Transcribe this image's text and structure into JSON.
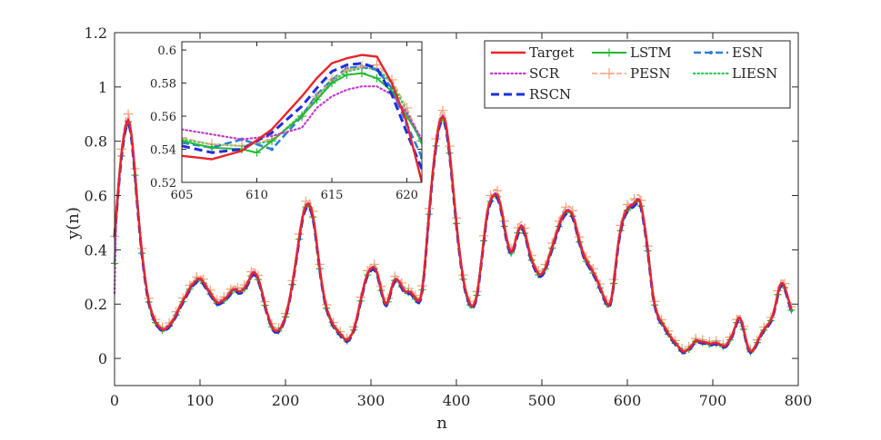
{
  "chart_data": {
    "type": "line",
    "title": "",
    "xlabel": "n",
    "ylabel": "y(n)",
    "xlim": [
      0,
      800
    ],
    "ylim": [
      -0.1,
      1.2
    ],
    "xticks": [
      "0",
      "100",
      "200",
      "300",
      "400",
      "500",
      "600",
      "700",
      "800"
    ],
    "yticks": [
      "0",
      "0.2",
      "0.4",
      "0.6",
      "0.8",
      "1",
      "1.2"
    ],
    "legend_position": "top-right",
    "target_curve": {
      "x": [
        0,
        4,
        8,
        13,
        17,
        21,
        26,
        32,
        40,
        48,
        57,
        67,
        78,
        90,
        100,
        110,
        120,
        130,
        140,
        147,
        155,
        163,
        170,
        178,
        186,
        193,
        200,
        207,
        214,
        221,
        228,
        234,
        241,
        248,
        256,
        264,
        272,
        280,
        287,
        294,
        301,
        307,
        312,
        318,
        323,
        328,
        334,
        340,
        346,
        352,
        358,
        362,
        367,
        373,
        380,
        386,
        391,
        397,
        403,
        410,
        418,
        424,
        430,
        436,
        442,
        448,
        453,
        459,
        465,
        470,
        476,
        481,
        486,
        491,
        497,
        503,
        509,
        516,
        523,
        530,
        537,
        543,
        550,
        558,
        566,
        573,
        580,
        585,
        590,
        596,
        602,
        609,
        614,
        619,
        625,
        630,
        636,
        643,
        650,
        658,
        666,
        674,
        680,
        686,
        692,
        697,
        703,
        709,
        715,
        720,
        725,
        731,
        737,
        741,
        746,
        752,
        758,
        764,
        770,
        775,
        779,
        784,
        788,
        793
      ],
      "y": [
        0.45,
        0.62,
        0.76,
        0.87,
        0.9,
        0.8,
        0.6,
        0.38,
        0.2,
        0.13,
        0.1,
        0.13,
        0.2,
        0.27,
        0.3,
        0.25,
        0.2,
        0.22,
        0.26,
        0.24,
        0.27,
        0.33,
        0.28,
        0.17,
        0.1,
        0.1,
        0.15,
        0.25,
        0.4,
        0.55,
        0.58,
        0.5,
        0.3,
        0.18,
        0.12,
        0.09,
        0.06,
        0.1,
        0.2,
        0.3,
        0.34,
        0.33,
        0.25,
        0.18,
        0.25,
        0.3,
        0.28,
        0.24,
        0.25,
        0.22,
        0.2,
        0.3,
        0.5,
        0.72,
        0.88,
        0.9,
        0.8,
        0.6,
        0.4,
        0.25,
        0.18,
        0.22,
        0.38,
        0.55,
        0.6,
        0.61,
        0.55,
        0.43,
        0.37,
        0.45,
        0.5,
        0.46,
        0.38,
        0.34,
        0.3,
        0.32,
        0.38,
        0.45,
        0.52,
        0.55,
        0.53,
        0.44,
        0.37,
        0.33,
        0.28,
        0.22,
        0.18,
        0.3,
        0.45,
        0.53,
        0.56,
        0.57,
        0.6,
        0.52,
        0.38,
        0.22,
        0.15,
        0.12,
        0.08,
        0.05,
        0.02,
        0.04,
        0.07,
        0.06,
        0.06,
        0.05,
        0.06,
        0.05,
        0.04,
        0.07,
        0.1,
        0.17,
        0.1,
        0.03,
        0.02,
        0.06,
        0.1,
        0.12,
        0.15,
        0.22,
        0.29,
        0.27,
        0.22,
        0.17
      ]
    },
    "series": [
      {
        "name": "Target",
        "color": "#e8242b",
        "style": "solid",
        "offset": 0.0,
        "endOffset": 0.0
      },
      {
        "name": "SCR",
        "color": "#c43bd1",
        "style": "dotted",
        "offset": 0.004,
        "endOffset": -0.21
      },
      {
        "name": "RSCN",
        "color": "#1f2fd9",
        "style": "dashed",
        "offset": -0.01,
        "endOffset": 0.0
      },
      {
        "name": "LSTM",
        "color": "#23b833",
        "style": "plus",
        "offset": -0.004,
        "endOffset": -0.1
      },
      {
        "name": "PESN",
        "color": "#f4a07a",
        "style": "dashplus",
        "offset": 0.018,
        "endOffset": 0.0
      },
      {
        "name": "ESN",
        "color": "#2d7fd6",
        "style": "dashdot-marker",
        "offset": -0.006,
        "endOffset": 0.0
      },
      {
        "name": "LIESN",
        "color": "#2fcf5a",
        "style": "dotted",
        "offset": 0.003,
        "endOffset": 0.0
      }
    ],
    "inset": {
      "xlim": [
        605,
        621
      ],
      "ylim": [
        0.52,
        0.605
      ],
      "xticks": [
        "605",
        "610",
        "615",
        "620"
      ],
      "yticks": [
        "0.52",
        "0.54",
        "0.56",
        "0.58",
        "0.6"
      ],
      "series": [
        {
          "name": "Target",
          "x": [
            605,
            607,
            609,
            611,
            613,
            614,
            615,
            616,
            617,
            618,
            619,
            620,
            621
          ],
          "y": [
            0.536,
            0.534,
            0.539,
            0.552,
            0.572,
            0.583,
            0.592,
            0.595,
            0.597,
            0.596,
            0.58,
            0.556,
            0.52
          ]
        },
        {
          "name": "SCR",
          "x": [
            605,
            607,
            609,
            611,
            613,
            614,
            615,
            616,
            617,
            618,
            619,
            620,
            621
          ],
          "y": [
            0.552,
            0.549,
            0.546,
            0.548,
            0.553,
            0.565,
            0.572,
            0.576,
            0.578,
            0.578,
            0.573,
            0.562,
            0.546
          ]
        },
        {
          "name": "RSCN",
          "x": [
            605,
            607,
            609,
            611,
            613,
            614,
            615,
            616,
            617,
            618,
            619,
            620,
            621
          ],
          "y": [
            0.542,
            0.538,
            0.54,
            0.55,
            0.566,
            0.577,
            0.587,
            0.591,
            0.592,
            0.589,
            0.573,
            0.55,
            0.528
          ]
        },
        {
          "name": "LSTM",
          "x": [
            605,
            607,
            609,
            610,
            611,
            613,
            614,
            615,
            616,
            617,
            618,
            619,
            620,
            621
          ],
          "y": [
            0.545,
            0.541,
            0.54,
            0.538,
            0.545,
            0.56,
            0.57,
            0.58,
            0.585,
            0.586,
            0.583,
            0.575,
            0.56,
            0.545
          ]
        },
        {
          "name": "PESN",
          "x": [
            605,
            607,
            609,
            611,
            613,
            614,
            615,
            616,
            617,
            618,
            619,
            620,
            621
          ],
          "y": [
            0.547,
            0.543,
            0.542,
            0.546,
            0.56,
            0.572,
            0.582,
            0.588,
            0.59,
            0.591,
            0.582,
            0.565,
            0.545
          ]
        },
        {
          "name": "ESN",
          "x": [
            605,
            607,
            609,
            611,
            613,
            614,
            615,
            616,
            617,
            618,
            619,
            620,
            621
          ],
          "y": [
            0.544,
            0.541,
            0.546,
            0.54,
            0.56,
            0.573,
            0.582,
            0.589,
            0.59,
            0.588,
            0.577,
            0.555,
            0.535
          ]
        },
        {
          "name": "LIESN",
          "x": [
            605,
            607,
            609,
            611,
            613,
            614,
            615,
            616,
            617,
            618,
            619,
            620,
            621
          ],
          "y": [
            0.546,
            0.543,
            0.542,
            0.545,
            0.561,
            0.572,
            0.581,
            0.587,
            0.589,
            0.589,
            0.58,
            0.563,
            0.543
          ]
        }
      ]
    }
  }
}
